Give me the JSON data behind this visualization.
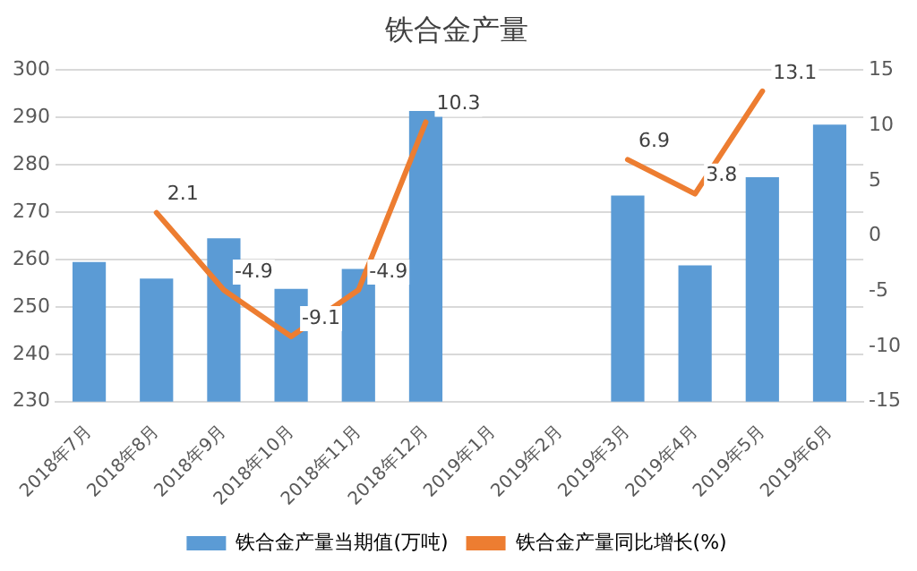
{
  "chart_data": {
    "type": "bar",
    "title": "铁合金产量",
    "categories": [
      "2018年7月",
      "2018年8月",
      "2018年9月",
      "2018年10月",
      "2018年11月",
      "2018年12月",
      "2019年1月",
      "2019年2月",
      "2019年3月",
      "2019年4月",
      "2019年5月",
      "2019年6月"
    ],
    "series": [
      {
        "name": "铁合金产量当期值(万吨)",
        "color": "#5b9bd5",
        "values": [
          259.5,
          256,
          264.5,
          253.8,
          258,
          291.4,
          null,
          null,
          273.5,
          258.8,
          277.4,
          288.5
        ]
      },
      {
        "name": "铁合金产量同比增长(%)",
        "type": "line",
        "axis": "y2",
        "color": "#ed7d31",
        "values": [
          null,
          2.1,
          -4.9,
          -9.1,
          -4.9,
          10.3,
          null,
          null,
          6.9,
          3.8,
          13.1,
          null
        ],
        "value_labels": [
          null,
          "2.1",
          "-4.9",
          "-9.1",
          "-4.9",
          "10.3",
          null,
          null,
          "6.9",
          "3.8",
          "13.1",
          null
        ]
      }
    ],
    "ylim": [
      230,
      300
    ],
    "yticks": [
      230,
      240,
      250,
      260,
      270,
      280,
      290,
      300
    ],
    "y2lim": [
      -15,
      15
    ],
    "y2ticks": [
      -15,
      -10,
      -5,
      0,
      5,
      10,
      15
    ],
    "grid": "y",
    "legend": "bottom",
    "marker": "none"
  }
}
